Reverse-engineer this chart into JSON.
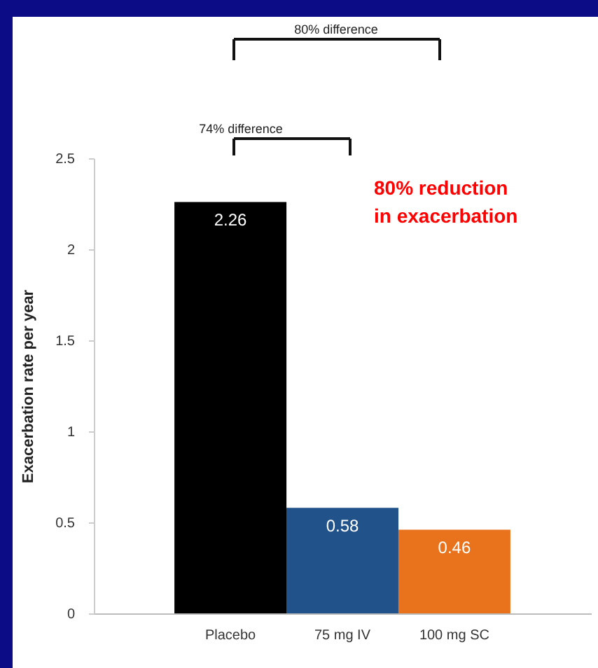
{
  "chart_data": {
    "type": "bar",
    "ylabel": "Exacerbation rate per year",
    "categories": [
      "Placebo",
      "75 mg IV",
      "100 mg SC"
    ],
    "values": [
      2.26,
      0.58,
      0.46
    ],
    "colors": [
      "#000000",
      "#21528a",
      "#e8731c"
    ],
    "data_labels": true,
    "ylim": [
      0,
      2.5
    ],
    "yticks": [
      0,
      0.5,
      1,
      1.5,
      2,
      2.5
    ],
    "annotations": [
      "80% difference",
      "74% difference",
      "80% reduction\nin exacerbation"
    ]
  }
}
